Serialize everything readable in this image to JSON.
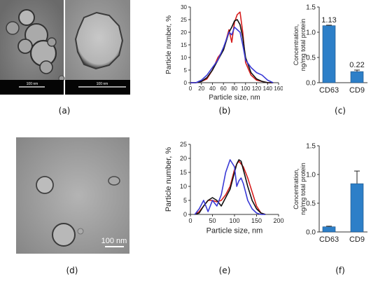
{
  "panel_labels": {
    "a": "(a)",
    "b": "(b)",
    "c": "(c)",
    "d": "(d)",
    "e": "(e)",
    "f": "(f)"
  },
  "scalebars": {
    "a_left": "100 nm",
    "a_right": "100 nm",
    "d": "100 nm"
  },
  "colors": {
    "red": "#d61d1d",
    "black": "#111111",
    "blue": "#3a3ad6",
    "bar": "#2d7fc8"
  },
  "chart_data": [
    {
      "id": "b",
      "type": "line",
      "xlabel": "Particle size, nm",
      "ylabel": "Particle number, %",
      "xlim": [
        0,
        160
      ],
      "ylim": [
        0,
        30
      ],
      "xticks": [
        0,
        20,
        40,
        60,
        80,
        100,
        120,
        140,
        160
      ],
      "yticks": [
        0,
        5,
        10,
        15,
        20,
        25,
        30
      ],
      "series": [
        {
          "color": "red",
          "x": [
            0,
            10,
            20,
            30,
            40,
            50,
            60,
            70,
            75,
            80,
            85,
            90,
            95,
            100,
            110,
            120,
            130,
            140,
            150
          ],
          "y": [
            0,
            0,
            0.5,
            1.5,
            5,
            10,
            13,
            21,
            16,
            24,
            27,
            28,
            20,
            8,
            3,
            1,
            0.5,
            0,
            0
          ]
        },
        {
          "color": "black",
          "x": [
            0,
            10,
            20,
            30,
            40,
            50,
            60,
            70,
            75,
            80,
            85,
            90,
            95,
            100,
            110,
            120,
            130,
            140,
            150
          ],
          "y": [
            0,
            0,
            0.5,
            2,
            5,
            9,
            13,
            20,
            22,
            24.5,
            25,
            23,
            18,
            10,
            4,
            1.5,
            0.5,
            0,
            0
          ]
        },
        {
          "color": "blue",
          "x": [
            0,
            10,
            20,
            30,
            40,
            50,
            60,
            70,
            75,
            80,
            85,
            90,
            95,
            100,
            110,
            120,
            130,
            140,
            150
          ],
          "y": [
            0,
            0,
            1,
            3,
            6,
            9,
            14,
            20,
            19,
            22,
            21,
            20,
            15,
            9,
            6,
            4,
            3,
            1,
            0
          ]
        }
      ]
    },
    {
      "id": "c",
      "type": "bar",
      "ylabel": [
        "Concentration,",
        "ng/mg total protein"
      ],
      "categories": [
        "CD63",
        "CD9"
      ],
      "values": [
        1.13,
        0.22
      ],
      "errors": [
        0.01,
        0.03
      ],
      "data_labels": [
        "1.13",
        "0.22"
      ],
      "ylim": [
        0,
        1.5
      ],
      "yticks": [
        "0.0",
        "0.5",
        "1.0",
        "1.5"
      ]
    },
    {
      "id": "e",
      "type": "line",
      "xlabel": "Particle size, nm",
      "ylabel": "Particle number, %",
      "xlim": [
        0,
        200
      ],
      "ylim": [
        0,
        25
      ],
      "xticks": [
        0,
        50,
        100,
        150,
        200
      ],
      "yticks": [
        0,
        5,
        10,
        15,
        20,
        25
      ],
      "series": [
        {
          "color": "red",
          "x": [
            10,
            20,
            30,
            40,
            50,
            60,
            70,
            80,
            90,
            100,
            105,
            110,
            115,
            120,
            125,
            130,
            140,
            150,
            160,
            170
          ],
          "y": [
            0,
            1,
            3,
            5,
            5,
            4.5,
            5,
            7,
            10,
            16,
            18,
            19,
            18,
            17,
            15,
            13,
            8,
            3,
            0.5,
            0
          ]
        },
        {
          "color": "black",
          "x": [
            10,
            20,
            30,
            40,
            50,
            60,
            70,
            80,
            90,
            100,
            105,
            110,
            115,
            120,
            125,
            130,
            140,
            150,
            160,
            170
          ],
          "y": [
            0,
            0.5,
            3,
            5,
            6,
            5,
            3,
            6,
            9,
            15,
            18,
            19.5,
            19,
            16,
            13,
            10,
            5,
            2,
            0.5,
            0
          ]
        },
        {
          "color": "blue",
          "x": [
            10,
            20,
            30,
            40,
            50,
            60,
            70,
            80,
            90,
            100,
            105,
            110,
            115,
            120,
            125,
            130,
            140,
            150,
            160,
            170
          ],
          "y": [
            0,
            2,
            5,
            1,
            5,
            3,
            7,
            15,
            19.5,
            17,
            10,
            12,
            13,
            11,
            8,
            5,
            2,
            0.5,
            0,
            0
          ]
        }
      ]
    },
    {
      "id": "f",
      "type": "bar",
      "ylabel": [
        "Concentration,",
        "ng/mg total protein"
      ],
      "categories": [
        "CD63",
        "CD9"
      ],
      "values": [
        0.09,
        0.84
      ],
      "errors": [
        0.01,
        0.22
      ],
      "ylim": [
        0,
        1.5
      ],
      "yticks": [
        "0.0",
        "0.5",
        "1.0",
        "1.5"
      ]
    }
  ]
}
